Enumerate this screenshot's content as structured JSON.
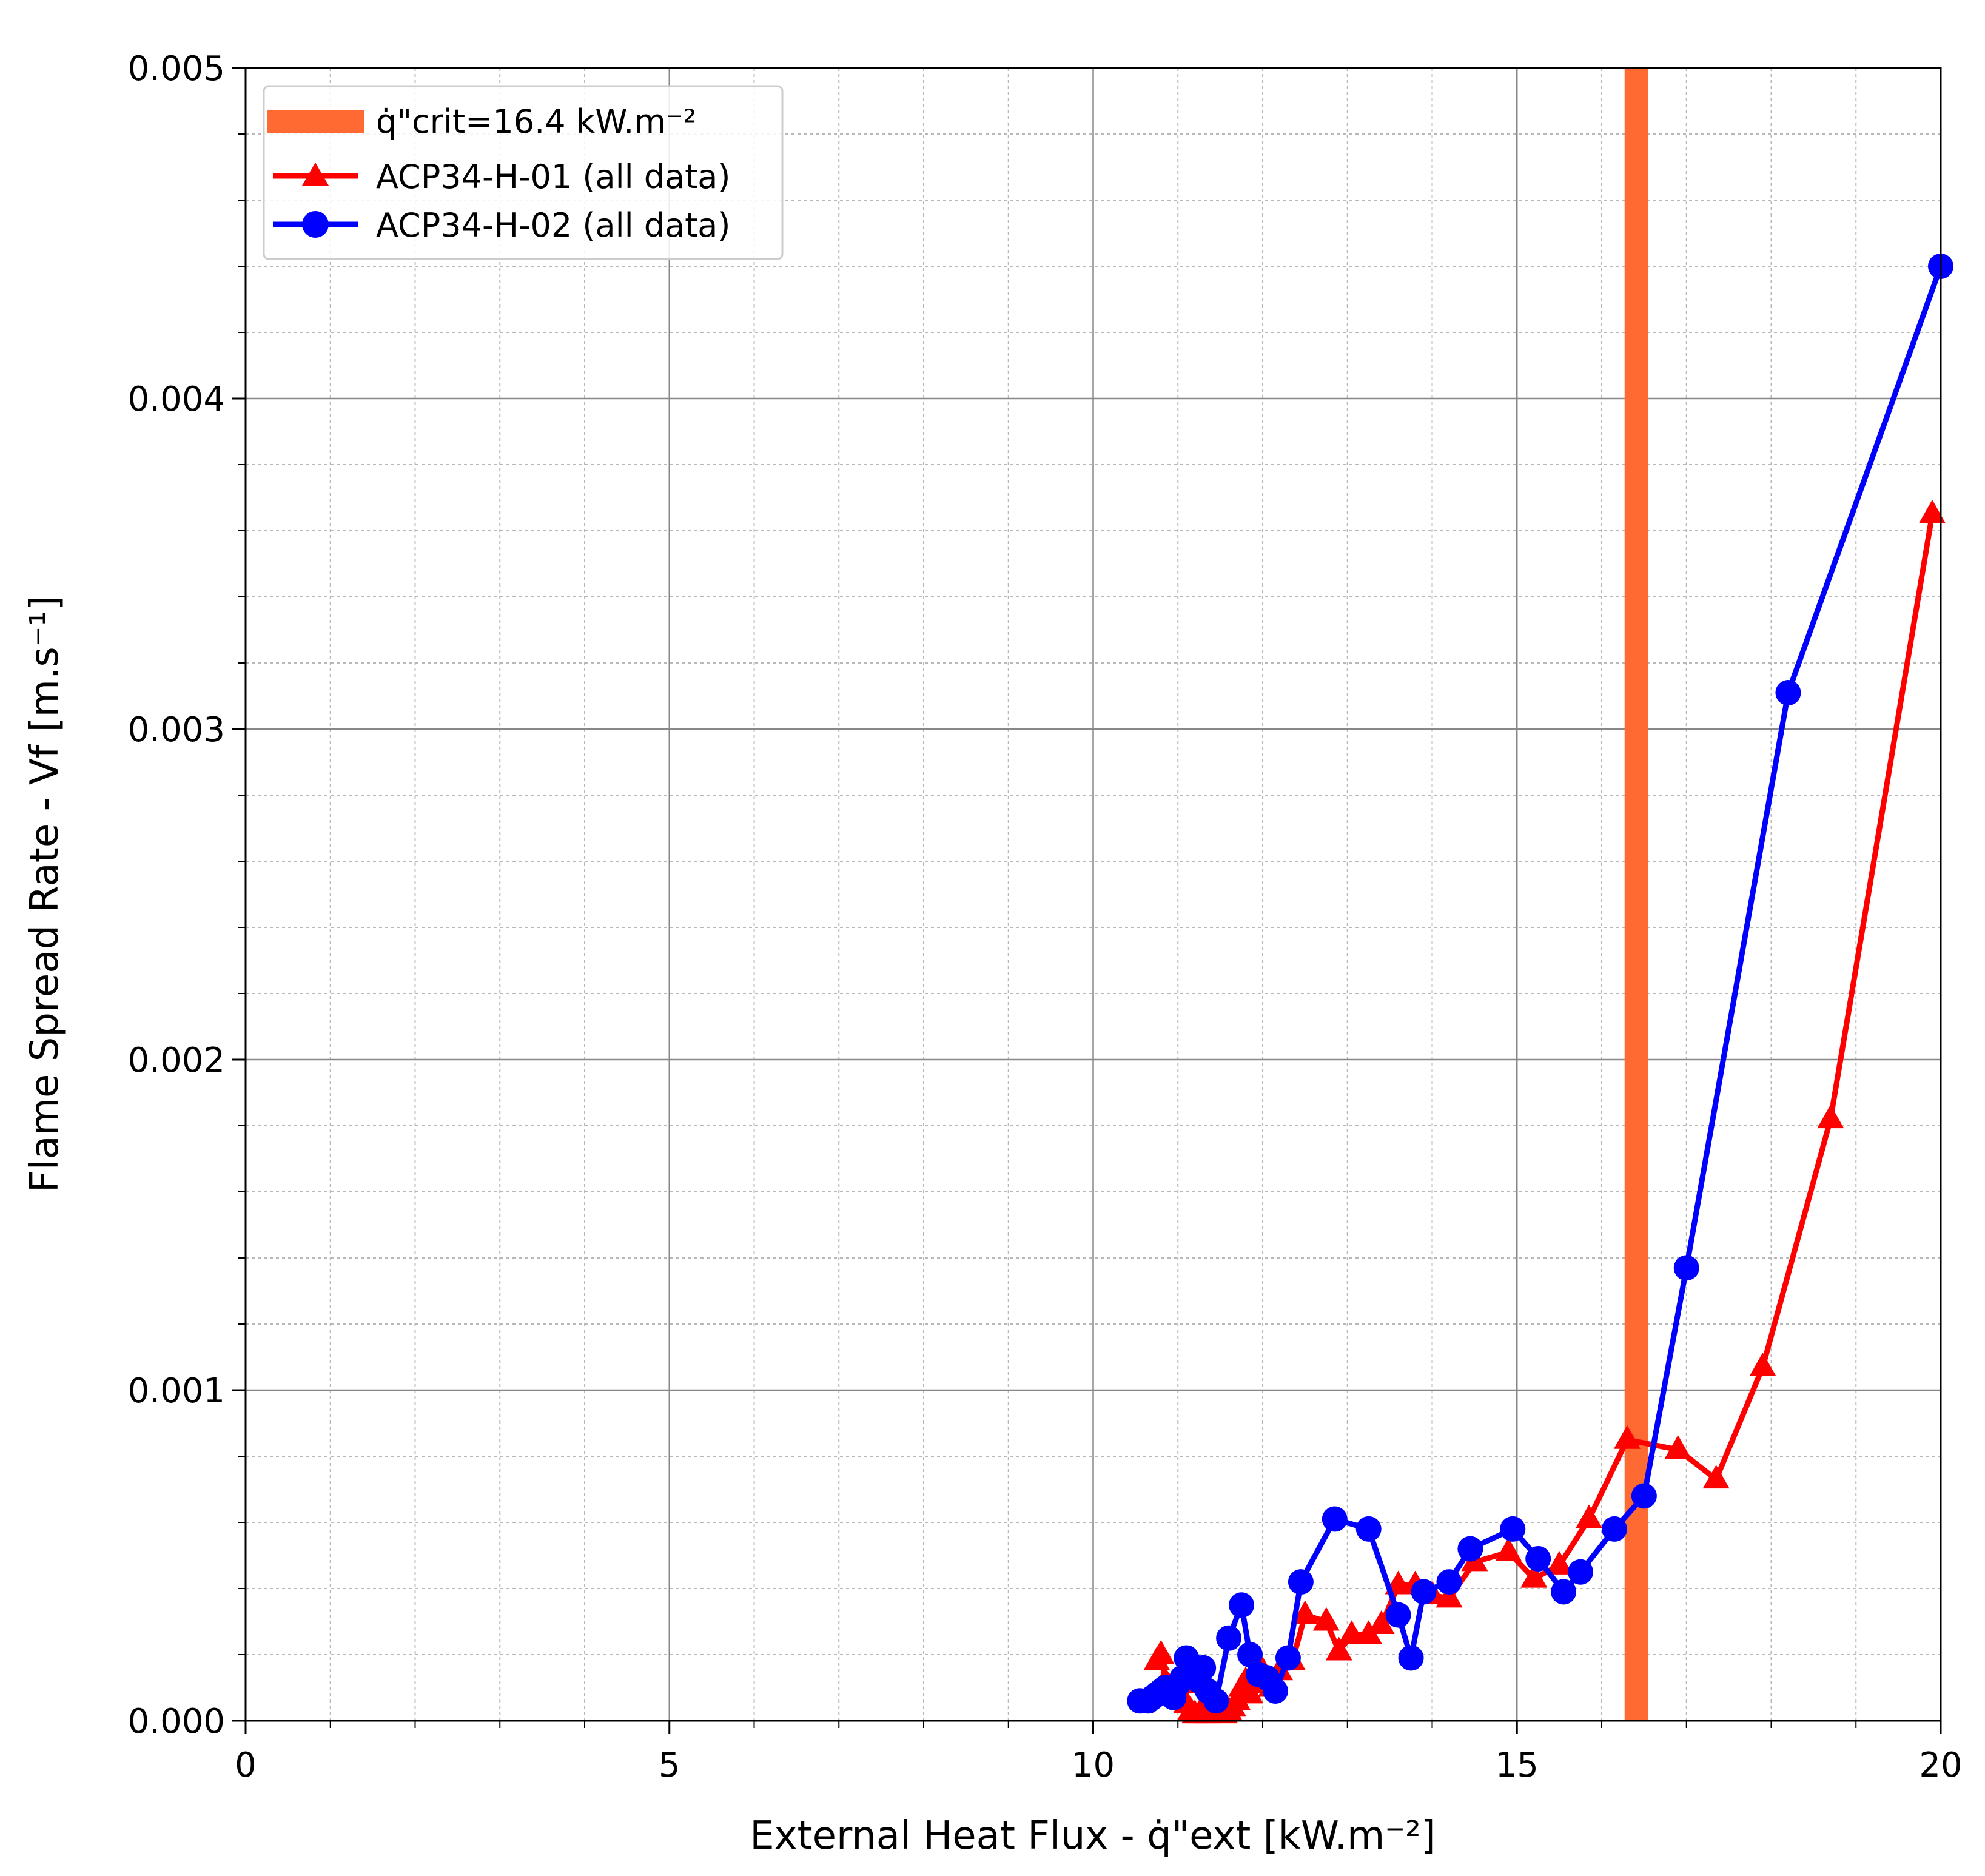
{
  "chart_data": {
    "type": "line",
    "xlabel": "External Heat Flux - q̇\"ext [kW.m⁻²]",
    "ylabel": "Flame Spread Rate - Vf [m.s⁻¹]",
    "xlim": [
      0,
      20
    ],
    "ylim": [
      0,
      0.005
    ],
    "x_ticks": [
      "0",
      "5",
      "10",
      "15",
      "20"
    ],
    "y_ticks": [
      "0.000",
      "0.001",
      "0.002",
      "0.003",
      "0.004",
      "0.005"
    ],
    "grid": true,
    "legend_position": "top-left",
    "critical_flux": {
      "label": "q̇\"crit=16.4 kW.m⁻²",
      "x_range": [
        16.27,
        16.55
      ],
      "color": "#ff6a33"
    },
    "series": [
      {
        "name": "ACP34-H-01 (all data)",
        "color": "#ff0000",
        "marker": "triangle",
        "x": [
          10.75,
          10.8,
          10.85,
          10.9,
          10.95,
          11.0,
          11.05,
          11.1,
          11.15,
          11.2,
          11.25,
          11.3,
          11.35,
          11.4,
          11.45,
          11.5,
          11.55,
          11.6,
          11.65,
          11.7,
          11.75,
          11.8,
          11.85,
          11.9,
          11.95,
          12.0,
          12.1,
          12.2,
          12.35,
          12.5,
          12.75,
          12.9,
          13.05,
          13.25,
          13.4,
          13.6,
          13.8,
          14.0,
          14.2,
          14.5,
          14.9,
          15.2,
          15.5,
          15.85,
          16.3,
          16.9,
          17.35,
          17.9,
          18.7,
          19.9
        ],
        "y": [
          0.00018,
          0.0002,
          0.00012,
          0.0001,
          8e-05,
          7e-05,
          0.00011,
          5e-05,
          3e-05,
          2e-05,
          2e-05,
          4e-05,
          2e-05,
          3e-05,
          5e-05,
          4e-05,
          2e-05,
          3e-05,
          4e-05,
          6e-05,
          0.0001,
          0.00012,
          8e-05,
          0.00011,
          0.00014,
          0.00015,
          0.0001,
          0.00015,
          0.00018,
          0.00032,
          0.0003,
          0.00021,
          0.00026,
          0.00026,
          0.00029,
          0.00041,
          0.00041,
          0.00038,
          0.00037,
          0.00048,
          0.00051,
          0.00043,
          0.00047,
          0.00061,
          0.00085,
          0.00082,
          0.00073,
          0.00107,
          0.00182,
          0.00365
        ]
      },
      {
        "name": "ACP34-H-02 (all data)",
        "color": "#0000ff",
        "marker": "circle",
        "x": [
          10.55,
          10.65,
          10.7,
          10.75,
          10.8,
          10.85,
          10.9,
          10.95,
          11.0,
          11.05,
          11.1,
          11.15,
          11.2,
          11.25,
          11.3,
          11.35,
          11.45,
          11.6,
          11.75,
          11.85,
          11.95,
          12.05,
          12.15,
          12.3,
          12.45,
          12.85,
          13.25,
          13.6,
          13.75,
          13.9,
          14.2,
          14.45,
          14.95,
          15.25,
          15.55,
          15.75,
          16.15,
          16.5,
          17.0,
          18.2,
          20.0
        ],
        "y": [
          6e-05,
          6e-05,
          7e-05,
          8e-05,
          9e-05,
          0.0001,
          8e-05,
          7e-05,
          0.00011,
          0.00013,
          0.00019,
          0.00017,
          0.00014,
          0.00012,
          0.00016,
          9e-05,
          6e-05,
          0.00025,
          0.00035,
          0.0002,
          0.00014,
          0.00013,
          9e-05,
          0.00019,
          0.00042,
          0.00061,
          0.00058,
          0.00032,
          0.00019,
          0.00039,
          0.00042,
          0.00052,
          0.00058,
          0.00049,
          0.00039,
          0.00045,
          0.00058,
          0.00068,
          0.00137,
          0.00311,
          0.0044
        ]
      }
    ]
  }
}
